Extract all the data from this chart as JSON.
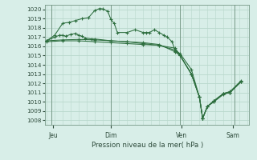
{
  "xlabel": "Pression niveau de la mer( hPa )",
  "bg_color": "#d8eee8",
  "grid_color": "#b8d8cc",
  "line_color": "#2d6e3e",
  "ylim": [
    1007.5,
    1020.5
  ],
  "yticks": [
    1008,
    1009,
    1010,
    1011,
    1012,
    1013,
    1014,
    1015,
    1016,
    1017,
    1018,
    1019,
    1020
  ],
  "xlim": [
    -0.05,
    6.3
  ],
  "day_positions": [
    0.2,
    2.0,
    4.2,
    5.8
  ],
  "day_labels": [
    "Jeu",
    "Dim",
    "Ven",
    "Sam"
  ],
  "vlines": [
    0.15,
    2.0,
    4.15,
    5.85
  ],
  "series": [
    {
      "xy": [
        [
          0.0,
          1016.5
        ],
        [
          0.5,
          1016.6
        ],
        [
          1.0,
          1016.6
        ],
        [
          1.5,
          1016.5
        ],
        [
          2.0,
          1016.4
        ],
        [
          2.5,
          1016.3
        ],
        [
          3.0,
          1016.2
        ],
        [
          3.5,
          1016.1
        ],
        [
          4.0,
          1015.8
        ],
        [
          4.15,
          1015.0
        ],
        [
          4.5,
          1013.0
        ],
        [
          4.75,
          1010.5
        ],
        [
          4.85,
          1008.2
        ],
        [
          5.0,
          1009.5
        ],
        [
          5.2,
          1010.0
        ],
        [
          5.5,
          1010.8
        ],
        [
          5.7,
          1011.0
        ],
        [
          6.05,
          1012.2
        ]
      ]
    },
    {
      "xy": [
        [
          0.0,
          1016.6
        ],
        [
          0.5,
          1016.7
        ],
        [
          1.0,
          1016.75
        ],
        [
          1.5,
          1016.7
        ],
        [
          2.0,
          1016.6
        ],
        [
          2.5,
          1016.5
        ],
        [
          3.0,
          1016.3
        ],
        [
          3.5,
          1016.1
        ],
        [
          4.0,
          1015.6
        ],
        [
          4.15,
          1015.2
        ],
        [
          4.5,
          1013.5
        ],
        [
          4.75,
          1010.5
        ],
        [
          4.85,
          1008.2
        ],
        [
          5.0,
          1009.5
        ],
        [
          5.2,
          1010.1
        ],
        [
          5.5,
          1010.9
        ],
        [
          5.7,
          1011.1
        ],
        [
          6.05,
          1012.3
        ]
      ]
    },
    {
      "xy": [
        [
          0.0,
          1016.6
        ],
        [
          0.25,
          1017.2
        ],
        [
          0.5,
          1018.5
        ],
        [
          0.7,
          1018.6
        ],
        [
          0.9,
          1018.8
        ],
        [
          1.1,
          1019.0
        ],
        [
          1.3,
          1019.1
        ],
        [
          1.5,
          1019.9
        ],
        [
          1.65,
          1020.1
        ],
        [
          1.75,
          1020.05
        ],
        [
          1.9,
          1019.8
        ],
        [
          2.0,
          1018.9
        ],
        [
          2.1,
          1018.5
        ],
        [
          2.2,
          1017.5
        ],
        [
          2.5,
          1017.5
        ],
        [
          2.75,
          1017.8
        ],
        [
          3.0,
          1017.5
        ],
        [
          3.1,
          1017.5
        ],
        [
          3.2,
          1017.5
        ],
        [
          3.35,
          1017.8
        ],
        [
          3.5,
          1017.5
        ],
        [
          3.65,
          1017.2
        ],
        [
          3.75,
          1017.0
        ],
        [
          3.9,
          1016.5
        ],
        [
          4.0,
          1015.5
        ],
        [
          4.15,
          1015.0
        ],
        [
          4.5,
          1013.0
        ],
        [
          4.75,
          1010.5
        ],
        [
          4.85,
          1008.2
        ],
        [
          5.0,
          1009.5
        ],
        [
          5.2,
          1010.0
        ],
        [
          5.5,
          1010.9
        ],
        [
          5.7,
          1011.0
        ],
        [
          6.05,
          1012.2
        ]
      ]
    },
    {
      "xy": [
        [
          0.0,
          1016.6
        ],
        [
          0.25,
          1017.0
        ],
        [
          0.4,
          1017.2
        ],
        [
          0.5,
          1017.2
        ],
        [
          0.6,
          1017.1
        ],
        [
          0.75,
          1017.3
        ],
        [
          0.9,
          1017.4
        ],
        [
          1.0,
          1017.2
        ],
        [
          1.1,
          1017.1
        ],
        [
          1.2,
          1016.9
        ],
        [
          1.4,
          1016.8
        ],
        [
          1.5,
          1016.8
        ],
        [
          2.0,
          1016.6
        ],
        [
          2.5,
          1016.5
        ],
        [
          3.0,
          1016.4
        ],
        [
          3.5,
          1016.2
        ],
        [
          4.0,
          1015.4
        ],
        [
          4.15,
          1015.0
        ],
        [
          4.5,
          1013.0
        ],
        [
          4.75,
          1010.5
        ],
        [
          4.85,
          1008.2
        ],
        [
          5.0,
          1009.5
        ],
        [
          5.2,
          1010.1
        ],
        [
          5.5,
          1010.9
        ],
        [
          5.7,
          1011.0
        ],
        [
          6.05,
          1012.2
        ]
      ]
    }
  ]
}
